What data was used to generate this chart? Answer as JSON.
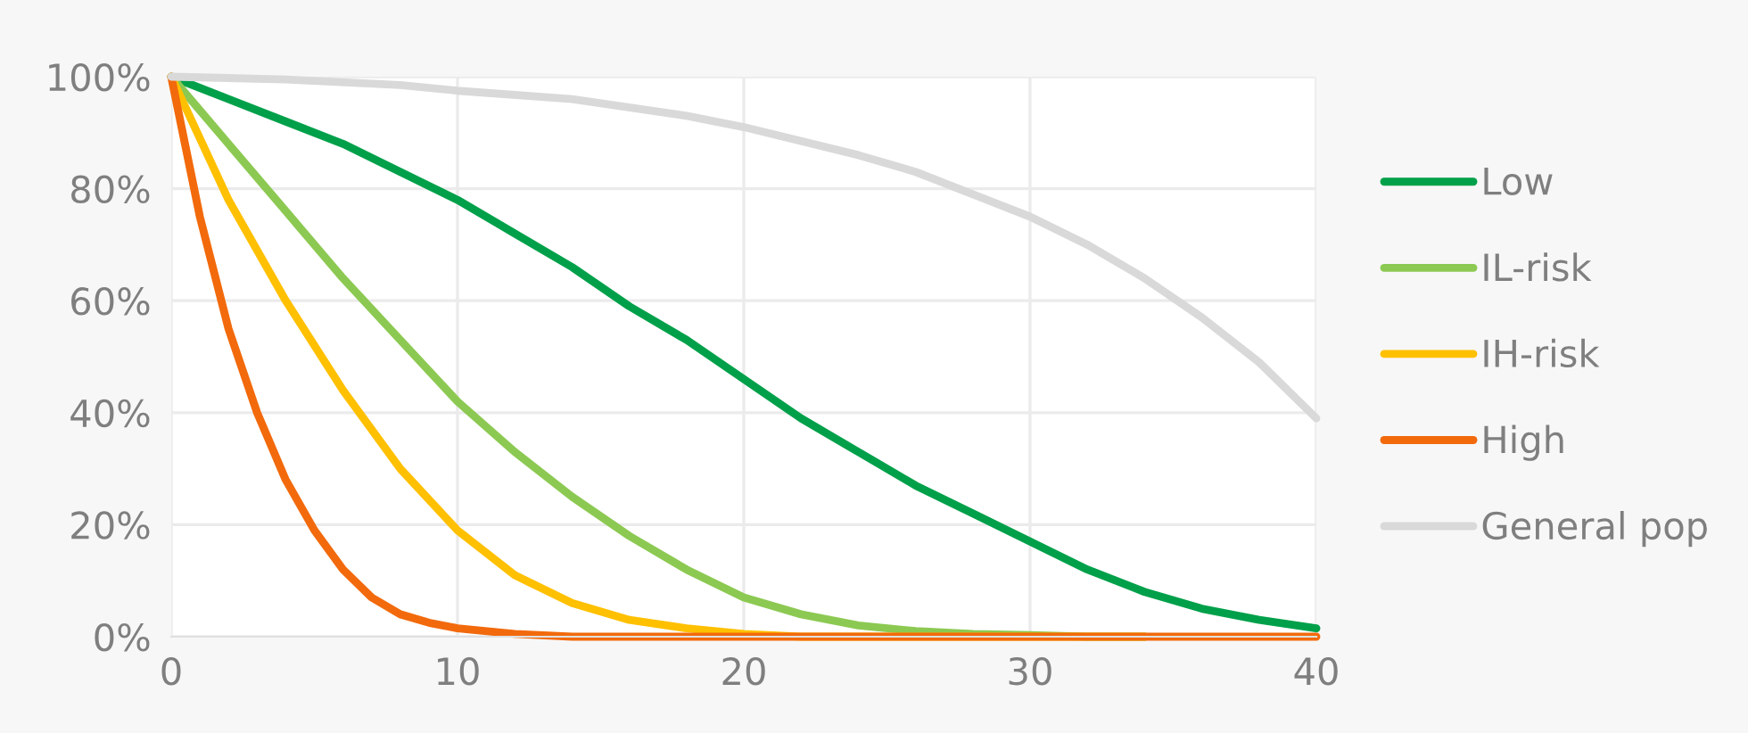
{
  "chart_data": {
    "type": "line",
    "series": [
      {
        "name": "Low",
        "color": "#00a04a",
        "x": [
          0,
          2,
          4,
          6,
          8,
          10,
          12,
          14,
          16,
          18,
          20,
          22,
          24,
          26,
          28,
          30,
          32,
          34,
          36,
          38,
          40
        ],
        "values": [
          100,
          96,
          92,
          88,
          83,
          78,
          72,
          66,
          59,
          53,
          46,
          39,
          33,
          27,
          22,
          17,
          12,
          8,
          5,
          3,
          1.5
        ]
      },
      {
        "name": "IL-risk",
        "color": "#8cc952",
        "x": [
          0,
          2,
          4,
          6,
          8,
          10,
          12,
          14,
          16,
          18,
          20,
          22,
          24,
          26,
          28,
          30,
          32,
          34
        ],
        "values": [
          100,
          88,
          76,
          64,
          53,
          42,
          33,
          25,
          18,
          12,
          7,
          4,
          2,
          1,
          0.5,
          0.3,
          0,
          0
        ]
      },
      {
        "name": "IH-risk",
        "color": "#ffc000",
        "x": [
          0,
          2,
          4,
          6,
          8,
          10,
          12,
          14,
          16,
          18,
          20,
          22,
          24,
          26,
          28,
          30,
          32,
          34
        ],
        "values": [
          100,
          78,
          60,
          44,
          30,
          19,
          11,
          6,
          3,
          1.5,
          0.5,
          0,
          0,
          0,
          0,
          0,
          0,
          0
        ]
      },
      {
        "name": "High",
        "color": "#f26a0c",
        "x": [
          0,
          1,
          2,
          3,
          4,
          5,
          6,
          7,
          8,
          9,
          10,
          12,
          14,
          16,
          20,
          24,
          28,
          32,
          36,
          40
        ],
        "values": [
          100,
          75,
          55,
          40,
          28,
          19,
          12,
          7,
          4,
          2.5,
          1.5,
          0.5,
          0,
          0,
          0,
          0,
          0,
          0,
          0,
          0
        ]
      },
      {
        "name": "General pop",
        "color": "#d9d9d9",
        "x": [
          0,
          4,
          8,
          10,
          14,
          18,
          20,
          24,
          26,
          28,
          30,
          32,
          34,
          36,
          38,
          40
        ],
        "values": [
          100,
          99.5,
          98.5,
          97.5,
          96,
          93,
          91,
          86,
          83,
          79,
          75,
          70,
          64,
          57,
          49,
          39
        ]
      }
    ],
    "xlim": [
      0,
      40
    ],
    "xticks": [
      0,
      10,
      20,
      30,
      40
    ],
    "ylim": [
      0,
      100
    ],
    "yticks": [
      {
        "value": 0,
        "label": "0%"
      },
      {
        "value": 20,
        "label": "20%"
      },
      {
        "value": 40,
        "label": "40%"
      },
      {
        "value": 60,
        "label": "60%"
      },
      {
        "value": 80,
        "label": "80%"
      },
      {
        "value": 100,
        "label": "100%"
      }
    ],
    "grid": true,
    "legend": "right",
    "marker": "none",
    "line_style": "solid"
  }
}
